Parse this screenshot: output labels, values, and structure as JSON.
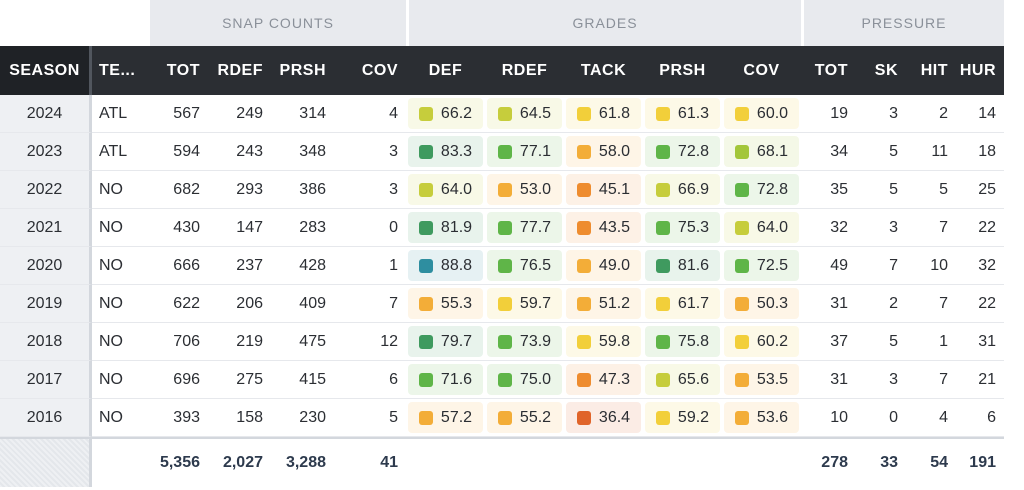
{
  "groups": {
    "snap": "SNAP COUNTS",
    "grades": "GRADES",
    "pressure": "PRESSURE"
  },
  "headers": {
    "season": "SEASON",
    "team": "TE...",
    "tot": "TOT",
    "rdef": "RDEF",
    "prsh": "PRSH",
    "cov": "COV",
    "g_def": "DEF",
    "g_rdef": "RDEF",
    "g_tack": "TACK",
    "g_prsh": "PRSH",
    "g_cov": "COV",
    "p_tot": "TOT",
    "p_sk": "SK",
    "p_hit": "HIT",
    "p_hur": "HUR"
  },
  "grade_colors": {
    "teal": "#2e8ea0",
    "dark_green": "#3f9a5f",
    "green": "#5fb548",
    "lime": "#a3c63a",
    "olive": "#c6cd3c",
    "yellow": "#f2cf3a",
    "light_orange": "#f3ad38",
    "orange": "#ee8c2f",
    "red_orange": "#e0642a"
  },
  "rows": [
    {
      "season": "2024",
      "team": "ATL",
      "tot": "567",
      "rdef": "249",
      "prsh": "314",
      "cov": "4",
      "grades": [
        {
          "v": "66.2",
          "c": "olive"
        },
        {
          "v": "64.5",
          "c": "olive"
        },
        {
          "v": "61.8",
          "c": "yellow"
        },
        {
          "v": "61.3",
          "c": "yellow"
        },
        {
          "v": "60.0",
          "c": "yellow"
        }
      ],
      "p_tot": "19",
      "sk": "3",
      "hit": "2",
      "hur": "14"
    },
    {
      "season": "2023",
      "team": "ATL",
      "tot": "594",
      "rdef": "243",
      "prsh": "348",
      "cov": "3",
      "grades": [
        {
          "v": "83.3",
          "c": "dark_green"
        },
        {
          "v": "77.1",
          "c": "green"
        },
        {
          "v": "58.0",
          "c": "light_orange"
        },
        {
          "v": "72.8",
          "c": "green"
        },
        {
          "v": "68.1",
          "c": "lime"
        }
      ],
      "p_tot": "34",
      "sk": "5",
      "hit": "11",
      "hur": "18"
    },
    {
      "season": "2022",
      "team": "NO",
      "tot": "682",
      "rdef": "293",
      "prsh": "386",
      "cov": "3",
      "grades": [
        {
          "v": "64.0",
          "c": "olive"
        },
        {
          "v": "53.0",
          "c": "light_orange"
        },
        {
          "v": "45.1",
          "c": "orange"
        },
        {
          "v": "66.9",
          "c": "olive"
        },
        {
          "v": "72.8",
          "c": "green"
        }
      ],
      "p_tot": "35",
      "sk": "5",
      "hit": "5",
      "hur": "25"
    },
    {
      "season": "2021",
      "team": "NO",
      "tot": "430",
      "rdef": "147",
      "prsh": "283",
      "cov": "0",
      "grades": [
        {
          "v": "81.9",
          "c": "dark_green"
        },
        {
          "v": "77.7",
          "c": "green"
        },
        {
          "v": "43.5",
          "c": "orange"
        },
        {
          "v": "75.3",
          "c": "green"
        },
        {
          "v": "64.0",
          "c": "olive"
        }
      ],
      "p_tot": "32",
      "sk": "3",
      "hit": "7",
      "hur": "22"
    },
    {
      "season": "2020",
      "team": "NO",
      "tot": "666",
      "rdef": "237",
      "prsh": "428",
      "cov": "1",
      "grades": [
        {
          "v": "88.8",
          "c": "teal"
        },
        {
          "v": "76.5",
          "c": "green"
        },
        {
          "v": "49.0",
          "c": "light_orange"
        },
        {
          "v": "81.6",
          "c": "dark_green"
        },
        {
          "v": "72.5",
          "c": "green"
        }
      ],
      "p_tot": "49",
      "sk": "7",
      "hit": "10",
      "hur": "32"
    },
    {
      "season": "2019",
      "team": "NO",
      "tot": "622",
      "rdef": "206",
      "prsh": "409",
      "cov": "7",
      "grades": [
        {
          "v": "55.3",
          "c": "light_orange"
        },
        {
          "v": "59.7",
          "c": "yellow"
        },
        {
          "v": "51.2",
          "c": "light_orange"
        },
        {
          "v": "61.7",
          "c": "yellow"
        },
        {
          "v": "50.3",
          "c": "light_orange"
        }
      ],
      "p_tot": "31",
      "sk": "2",
      "hit": "7",
      "hur": "22"
    },
    {
      "season": "2018",
      "team": "NO",
      "tot": "706",
      "rdef": "219",
      "prsh": "475",
      "cov": "12",
      "grades": [
        {
          "v": "79.7",
          "c": "dark_green"
        },
        {
          "v": "73.9",
          "c": "green"
        },
        {
          "v": "59.8",
          "c": "yellow"
        },
        {
          "v": "75.8",
          "c": "green"
        },
        {
          "v": "60.2",
          "c": "yellow"
        }
      ],
      "p_tot": "37",
      "sk": "5",
      "hit": "1",
      "hur": "31"
    },
    {
      "season": "2017",
      "team": "NO",
      "tot": "696",
      "rdef": "275",
      "prsh": "415",
      "cov": "6",
      "grades": [
        {
          "v": "71.6",
          "c": "green"
        },
        {
          "v": "75.0",
          "c": "green"
        },
        {
          "v": "47.3",
          "c": "orange"
        },
        {
          "v": "65.6",
          "c": "olive"
        },
        {
          "v": "53.5",
          "c": "light_orange"
        }
      ],
      "p_tot": "31",
      "sk": "3",
      "hit": "7",
      "hur": "21"
    },
    {
      "season": "2016",
      "team": "NO",
      "tot": "393",
      "rdef": "158",
      "prsh": "230",
      "cov": "5",
      "grades": [
        {
          "v": "57.2",
          "c": "light_orange"
        },
        {
          "v": "55.2",
          "c": "light_orange"
        },
        {
          "v": "36.4",
          "c": "red_orange"
        },
        {
          "v": "59.2",
          "c": "yellow"
        },
        {
          "v": "53.6",
          "c": "light_orange"
        }
      ],
      "p_tot": "10",
      "sk": "0",
      "hit": "4",
      "hur": "6"
    }
  ],
  "totals": {
    "tot": "5,356",
    "rdef": "2,027",
    "prsh": "3,288",
    "cov": "41",
    "p_tot": "278",
    "sk": "33",
    "hit": "54",
    "hur": "191"
  }
}
